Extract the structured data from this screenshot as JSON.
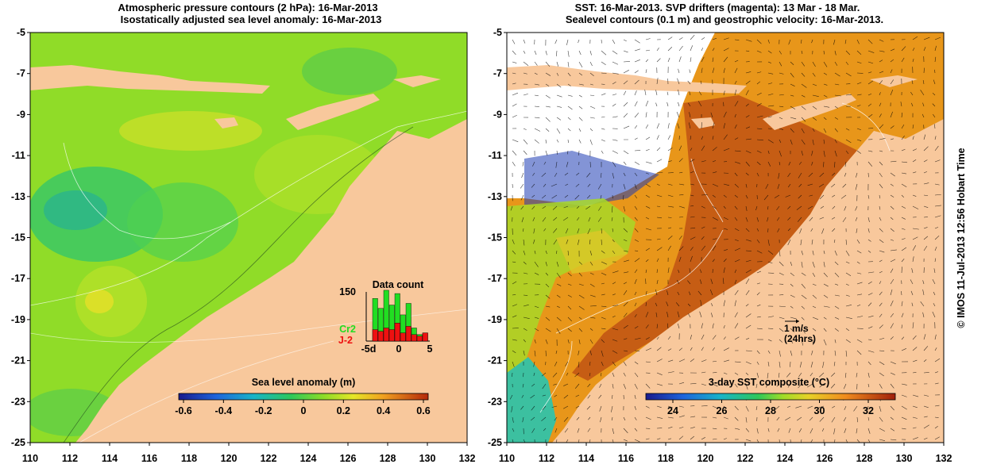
{
  "left_panel": {
    "title_line1": "Atmospheric pressure contours (2 hPa): 16-Mar-2013",
    "title_line2": "Isostatically adjusted sea level anomaly: 16-Mar-2013",
    "colorbar_title": "Sea level anomaly (m)",
    "colorbar_ticks": [
      "-0.6",
      "-0.4",
      "-0.2",
      "0",
      "0.2",
      "0.4",
      "0.6"
    ],
    "inset": {
      "title": "Data count",
      "y_max_label": "150",
      "x_labels": [
        "-5d",
        "0",
        "5"
      ],
      "series_labels": [
        "Cr2",
        "J-2"
      ],
      "series_colors": [
        "#22dd22",
        "#ee1111"
      ],
      "total_counts": [
        0,
        130,
        100,
        155,
        110,
        145,
        80,
        115,
        40,
        20,
        25
      ],
      "j2_counts": [
        0,
        35,
        30,
        40,
        35,
        55,
        25,
        45,
        20,
        15,
        25
      ]
    }
  },
  "right_panel": {
    "title_line1": "SST: 16-Mar-2013. SVP drifters (magenta): 13 Mar - 18 Mar.",
    "title_line2": "Sealevel contours (0.1 m) and geostrophic velocity: 16-Mar-2013.",
    "colorbar_title": "3-day SST composite (°C)",
    "colorbar_ticks": [
      "24",
      "26",
      "28",
      "30",
      "32"
    ],
    "scale_arrow_label1": "1 m/s",
    "scale_arrow_label2": "(24hrs)"
  },
  "axes": {
    "x_ticks": [
      "110",
      "112",
      "114",
      "116",
      "118",
      "120",
      "122",
      "124",
      "126",
      "128",
      "130",
      "132"
    ],
    "y_ticks": [
      "-5",
      "-7",
      "-9",
      "-11",
      "-13",
      "-15",
      "-17",
      "-19",
      "-21",
      "-23",
      "-25"
    ]
  },
  "credit": "© IMOS 11-Jul-2013 12:56 Hobart Time",
  "colors": {
    "land": "#f8c89c",
    "sla_ocean": "#88dd22",
    "sst_ocean": "#e08a14"
  }
}
